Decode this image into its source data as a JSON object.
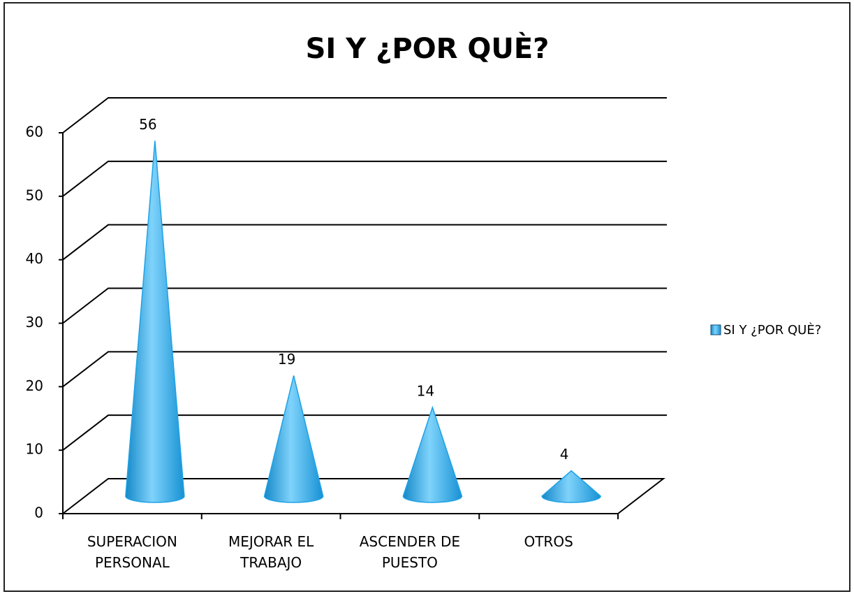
{
  "chart_data": {
    "type": "cone3d",
    "title": "SI Y ¿POR QUÈ?",
    "categories": [
      "SUPERACION PERSONAL",
      "MEJORAR EL TRABAJO",
      "ASCENDER DE PUESTO",
      "OTROS"
    ],
    "series": [
      {
        "name": "SI Y ¿POR QUÈ?",
        "color": "#1ea2e6",
        "values": [
          56,
          19,
          14,
          4
        ]
      }
    ],
    "ylim": [
      0,
      60
    ],
    "yticks": [
      0,
      10,
      20,
      30,
      40,
      50,
      60
    ],
    "grid": true,
    "legend": "right"
  }
}
